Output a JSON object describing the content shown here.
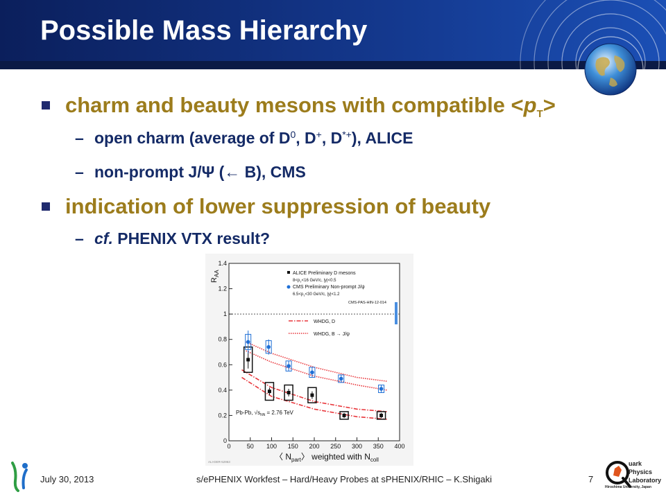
{
  "slide": {
    "title": "Possible Mass Hierarchy",
    "bullets": [
      {
        "text_a": "charm and beauty mesons with compatible <",
        "text_p": "p",
        "text_T": "T",
        "text_b": ">",
        "subs": [
          {
            "dash": "–",
            "a": "open charm (average of D",
            "s1": "0",
            "b": ", D",
            "s2": "+",
            "c": ", D",
            "s3": "*+",
            "d": "), ALICE"
          },
          {
            "dash": "–",
            "a": "non-prompt J/Ψ (← B), CMS"
          }
        ]
      },
      {
        "text_a": "indication of lower suppression of beauty",
        "subs": [
          {
            "dash": "–",
            "cf": "cf.",
            "a": " PHENIX VTX result?"
          }
        ]
      }
    ]
  },
  "footer": {
    "date": "July 30, 2013",
    "center": "s/ePHENIX Workfest – Hard/Heavy Probes at sPHENIX/RHIC – K.Shigaki",
    "page": "7"
  },
  "logo": {
    "line1": "uark",
    "line2": "Physics",
    "line3": "Laboratory",
    "line4": "Hiroshima University, Japan",
    "Q": "Q"
  },
  "chart_data": {
    "type": "scatter",
    "ylabel": "R",
    "ylabel_sub": "AA",
    "xlabel": "〈 N",
    "xlabel_sub1": "part",
    "xlabel_mid": "〉 weighted with N",
    "xlabel_sub2": "coll",
    "xlim": [
      0,
      400
    ],
    "ylim": [
      0,
      1.4
    ],
    "xticks": [
      0,
      50,
      100,
      150,
      200,
      250,
      300,
      350,
      400
    ],
    "yticks": [
      0,
      0.2,
      0.4,
      0.6,
      0.8,
      1,
      1.2,
      1.4
    ],
    "ytick_labels": [
      "0",
      "0.2",
      "0.4",
      "0.6",
      "0.8",
      "1",
      "1.2",
      "1.4"
    ],
    "reference_line": 1,
    "legend": {
      "alice": "ALICE Preliminary D mesons",
      "alice_cuts": "8<p",
      "alice_cuts_b": "<16 GeV/c, |y|<0.5",
      "cms": "CMS Preliminary Non-prompt J/ψ",
      "cms_cuts": "6.5<p",
      "cms_cuts_b": "<30 GeV/c, |y|<1.2",
      "ref": "CMS-PAS-HIN-12-014",
      "whdg_d": "WHDG, D",
      "whdg_b": "WHDG, B → J/ψ"
    },
    "system_label": "Pb-Pb, √s",
    "system_sub": "NN",
    "system_value": " = 2.76 TeV",
    "watermark": "ALI-DER-52963",
    "series": [
      {
        "name": "ALICE Preliminary D mesons",
        "color": "#000000",
        "points": [
          {
            "x": 45,
            "y": 0.64,
            "err": 0.07,
            "sys": 0.1
          },
          {
            "x": 95,
            "y": 0.39,
            "err": 0.03,
            "sys": 0.07
          },
          {
            "x": 140,
            "y": 0.38,
            "err": 0.03,
            "sys": 0.06
          },
          {
            "x": 195,
            "y": 0.36,
            "err": 0.03,
            "sys": 0.06
          },
          {
            "x": 270,
            "y": 0.2,
            "err": 0.02,
            "sys": 0.03
          },
          {
            "x": 357,
            "y": 0.2,
            "err": 0.02,
            "sys": 0.03
          }
        ]
      },
      {
        "name": "CMS Preliminary Non-prompt J/ψ",
        "color": "#1e6fd6",
        "points": [
          {
            "x": 45,
            "y": 0.78,
            "err": 0.09,
            "sys": 0.06
          },
          {
            "x": 93,
            "y": 0.74,
            "err": 0.06,
            "sys": 0.05
          },
          {
            "x": 140,
            "y": 0.59,
            "err": 0.04,
            "sys": 0.04
          },
          {
            "x": 195,
            "y": 0.54,
            "err": 0.04,
            "sys": 0.04
          },
          {
            "x": 263,
            "y": 0.49,
            "err": 0.03,
            "sys": 0.03
          },
          {
            "x": 357,
            "y": 0.41,
            "err": 0.03,
            "sys": 0.03
          }
        ]
      }
    ],
    "bands": [
      {
        "name": "WHDG, D",
        "color": "#e8353a",
        "style": "dashdot",
        "upper": [
          [
            30,
            0.56
          ],
          [
            100,
            0.42
          ],
          [
            200,
            0.31
          ],
          [
            300,
            0.25
          ],
          [
            370,
            0.23
          ]
        ],
        "lower": [
          [
            30,
            0.5
          ],
          [
            100,
            0.35
          ],
          [
            200,
            0.25
          ],
          [
            300,
            0.19
          ],
          [
            370,
            0.17
          ]
        ]
      },
      {
        "name": "WHDG, B → J/ψ",
        "color": "#e8353a",
        "style": "dotted",
        "upper": [
          [
            40,
            0.78
          ],
          [
            100,
            0.69
          ],
          [
            200,
            0.58
          ],
          [
            300,
            0.5
          ],
          [
            370,
            0.47
          ]
        ],
        "lower": [
          [
            40,
            0.71
          ],
          [
            100,
            0.62
          ],
          [
            200,
            0.51
          ],
          [
            300,
            0.44
          ],
          [
            370,
            0.4
          ]
        ]
      }
    ]
  }
}
